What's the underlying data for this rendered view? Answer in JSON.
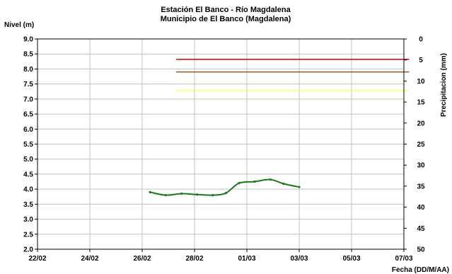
{
  "chart_data": {
    "type": "line",
    "title": "Estación El Banco - Río Magdalena",
    "subtitle": "Municipio de El Banco (Magdalena)",
    "ylabel": "Nivel (m)",
    "y2label": "Precipitacion (mm)",
    "xlabel": "Fecha (DD/M/AA)",
    "ylim": [
      2.0,
      9.0
    ],
    "y2lim": [
      0,
      50
    ],
    "y2_reversed": true,
    "grid": true,
    "legend": "none",
    "x_tick_labels": [
      "22/02",
      "24/02",
      "26/02",
      "28/02",
      "01/03",
      "03/03",
      "05/03",
      "07/03"
    ],
    "y_tick_labels": [
      "2.0",
      "2.5",
      "3.0",
      "3.5",
      "4.0",
      "4.5",
      "5.0",
      "5.5",
      "6.0",
      "6.5",
      "7.0",
      "7.5",
      "8.0",
      "8.5",
      "9.0"
    ],
    "y2_tick_labels": [
      "0",
      "5",
      "10",
      "15",
      "20",
      "25",
      "30",
      "35",
      "40",
      "45",
      "50"
    ],
    "series": [
      {
        "color": "#1a7a1a",
        "x": [
          4.3,
          4.9,
          5.5,
          6.1,
          6.7,
          7.2,
          7.7,
          8.3,
          8.9,
          9.4,
          10.0
        ],
        "values": [
          3.9,
          3.8,
          3.85,
          3.82,
          3.8,
          3.87,
          4.2,
          4.25,
          4.32,
          4.18,
          4.07
        ]
      }
    ],
    "thresholds": [
      {
        "value": 8.32,
        "color": "#cc0000",
        "x_start": 5.3,
        "x_end": 14.2
      },
      {
        "value": 7.9,
        "color": "#8b5a2b",
        "x_start": 5.3,
        "x_end": 14.2
      },
      {
        "value": 7.28,
        "color": "#ffff66",
        "x_start": 5.3,
        "x_end": 14.2
      }
    ]
  }
}
